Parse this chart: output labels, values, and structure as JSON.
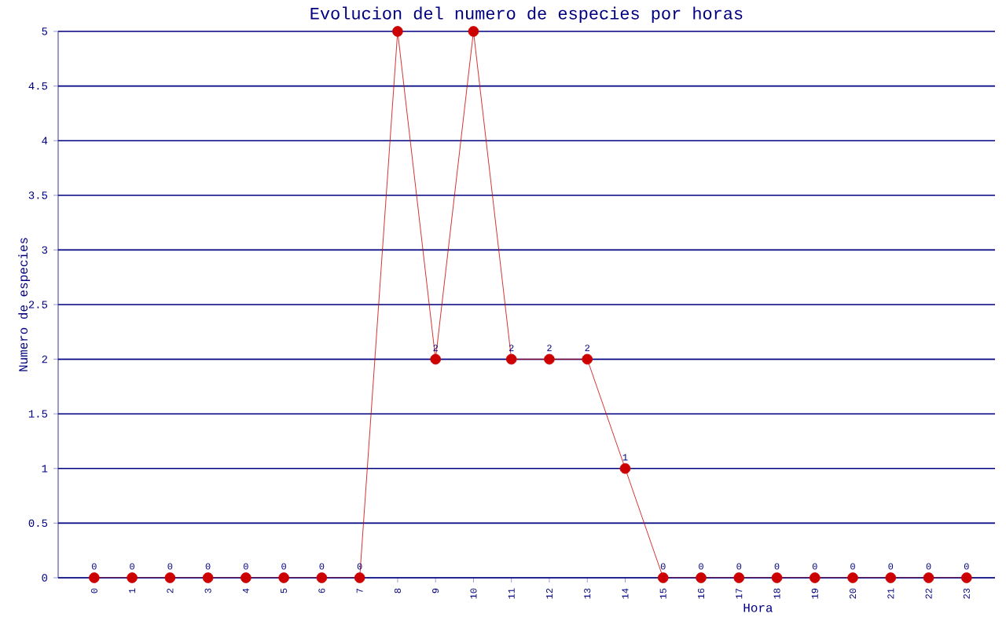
{
  "chart_data": {
    "type": "line",
    "title": "Evolucion del numero de especies por horas",
    "xlabel": "Hora",
    "ylabel": "Numero de especies",
    "categories": [
      "0",
      "1",
      "2",
      "3",
      "4",
      "5",
      "6",
      "7",
      "8",
      "9",
      "10",
      "11",
      "12",
      "13",
      "14",
      "15",
      "16",
      "17",
      "18",
      "19",
      "20",
      "21",
      "22",
      "23"
    ],
    "values": [
      0,
      0,
      0,
      0,
      0,
      0,
      0,
      0,
      5,
      2,
      5,
      2,
      2,
      2,
      1,
      0,
      0,
      0,
      0,
      0,
      0,
      0,
      0,
      0
    ],
    "color": "#cc0000",
    "ylim": [
      0,
      5
    ],
    "yticks": [
      0,
      0.5,
      1,
      1.5,
      2,
      2.5,
      3,
      3.5,
      4,
      4.5,
      5
    ],
    "value_labels": [
      "0",
      "0",
      "0",
      "0",
      "0",
      "0",
      "0",
      "0",
      null,
      "2",
      null,
      "2",
      "2",
      "2",
      "1",
      "0",
      "0",
      "0",
      "0",
      "0",
      "0",
      "0",
      "0",
      "0"
    ],
    "grid": "y",
    "marker": "circle",
    "line_style": "solid"
  }
}
